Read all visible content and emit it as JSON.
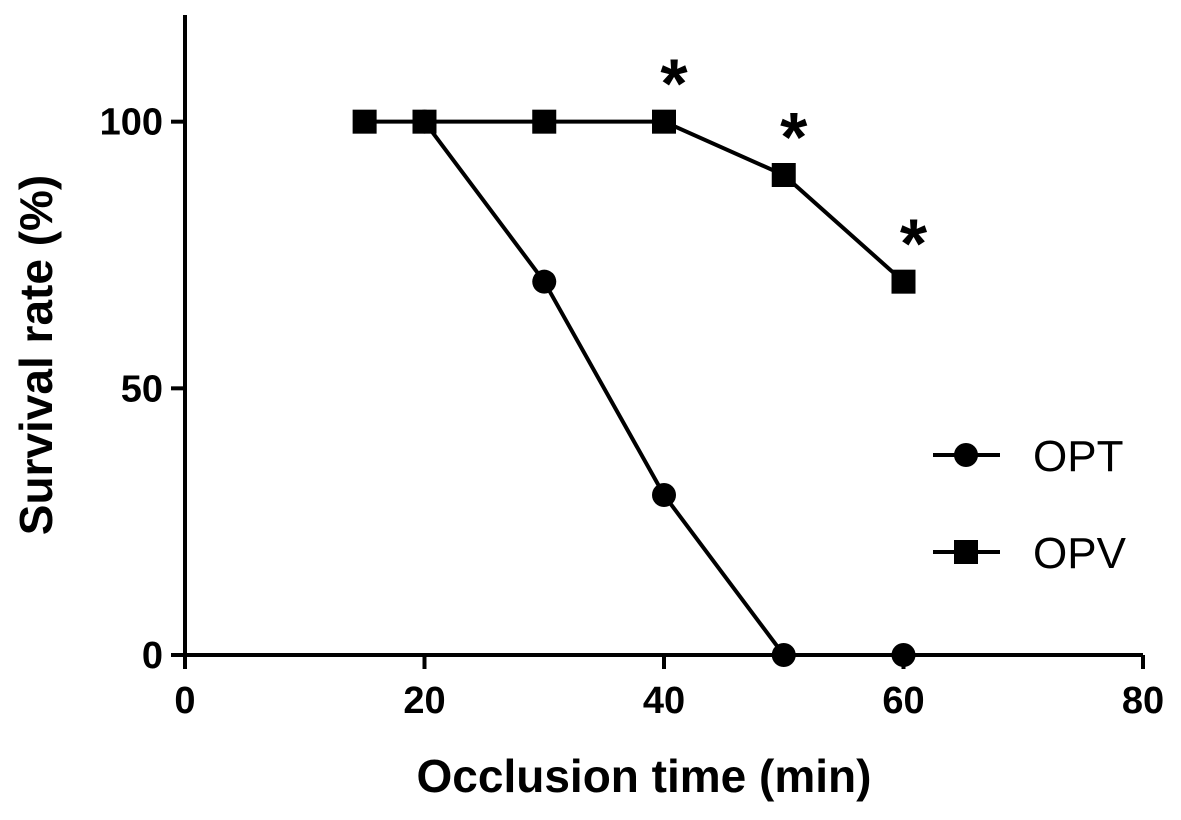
{
  "chart_data": {
    "type": "line",
    "xlabel": "Occlusion time (min)",
    "ylabel": "Survival rate (%)",
    "xlim": [
      0,
      80
    ],
    "ylim": [
      0,
      120
    ],
    "x_ticks": [
      0,
      20,
      40,
      60,
      80
    ],
    "y_ticks": [
      0,
      50,
      100
    ],
    "grid": false,
    "legend_position": "right",
    "series": [
      {
        "name": "OPT",
        "marker": "circle",
        "x": [
          20,
          30,
          40,
          50,
          60
        ],
        "y": [
          100,
          70,
          30,
          0,
          0
        ]
      },
      {
        "name": "OPV",
        "marker": "square",
        "x": [
          15,
          20,
          30,
          40,
          50,
          60
        ],
        "y": [
          100,
          100,
          100,
          100,
          90,
          70
        ]
      }
    ],
    "annotations": [
      {
        "text": "*",
        "x": 40,
        "y": 100
      },
      {
        "text": "*",
        "x": 50,
        "y": 90
      },
      {
        "text": "*",
        "x": 60,
        "y": 70
      }
    ]
  }
}
